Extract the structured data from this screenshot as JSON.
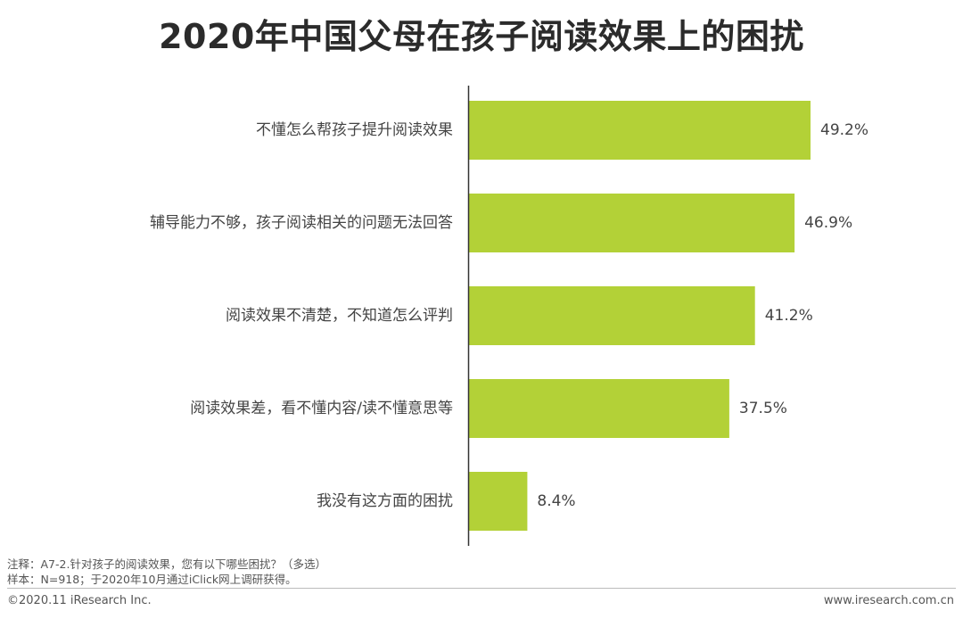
{
  "title": "2020年中国父母在孩子阅读效果上的困扰",
  "colors": {
    "bar": "#b3d137",
    "axis": "#333333"
  },
  "chart_data": {
    "type": "bar",
    "orientation": "horizontal",
    "categories": [
      "不懂怎么帮孩子提升阅读效果",
      "辅导能力不够，孩子阅读相关的问题无法回答",
      "阅读效果不清楚，不知道怎么评判",
      "阅读效果差，看不懂内容/读不懂意思等",
      "我没有这方面的困扰"
    ],
    "values": [
      49.2,
      46.9,
      41.2,
      37.5,
      8.4
    ],
    "value_labels": [
      "49.2%",
      "46.9%",
      "41.2%",
      "37.5%",
      "8.4%"
    ],
    "unit": "%",
    "xlim": [
      0,
      50
    ],
    "grid": false,
    "legend": "none"
  },
  "notes": {
    "line1": "注释：A7-2.针对孩子的阅读效果，您有以下哪些困扰？（多选）",
    "line2": "样本：N=918；于2020年10月通过iClick网上调研获得。"
  },
  "footer": {
    "copyright": "©2020.11 iResearch Inc.",
    "website": "www.iresearch.com.cn"
  }
}
